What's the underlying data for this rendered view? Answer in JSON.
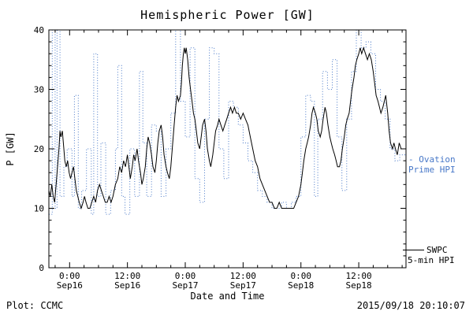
{
  "title": "Hemispheric Power [GW]",
  "ylabel": "P [GW]",
  "xlabel": "Date and Time",
  "footer_left": "Plot: CCMC",
  "footer_right": "2015/09/18 20:10:07",
  "legend": {
    "ovation_line1": "- Ovation",
    "ovation_line2": "Prime HPI",
    "swpc_line1": "SWPC",
    "swpc_line2": "5-min HPI"
  },
  "colors": {
    "ovation": "#4878c8",
    "swpc": "#000000",
    "axis": "#000000",
    "background": "#ffffff"
  },
  "chart_data": {
    "type": "line",
    "title": "Hemispheric Power [GW]",
    "xlabel": "Date and Time",
    "ylabel": "P [GW]",
    "ylim": [
      0,
      40
    ],
    "y_ticks": [
      0,
      10,
      20,
      30,
      40
    ],
    "y_minor_step": 2,
    "x_unit": "hours since 2015-09-16 00:00",
    "xlim_hours": [
      -4.3,
      69.8
    ],
    "x_minor_step": 3,
    "grid": false,
    "legend_position": "right-outside",
    "x_ticks": [
      {
        "t": 0,
        "line1": "0:00",
        "line2": "Sep16"
      },
      {
        "t": 12,
        "line1": "12:00",
        "line2": "Sep16"
      },
      {
        "t": 24,
        "line1": "0:00",
        "line2": "Sep17"
      },
      {
        "t": 36,
        "line1": "12:00",
        "line2": "Sep17"
      },
      {
        "t": 48,
        "line1": "0:00",
        "line2": "Sep18"
      },
      {
        "t": 60,
        "line1": "12:00",
        "line2": "Sep18"
      }
    ],
    "series": [
      {
        "name": "Ovation Prime HPI",
        "style": "step-dotted",
        "color": "#4878c8",
        "points": [
          [
            -4.3,
            9
          ],
          [
            -3.6,
            40
          ],
          [
            -3.0,
            10
          ],
          [
            -2.6,
            40
          ],
          [
            -2.0,
            12
          ],
          [
            -1.2,
            17
          ],
          [
            -0.5,
            20
          ],
          [
            0.5,
            12
          ],
          [
            1.0,
            29
          ],
          [
            1.8,
            10
          ],
          [
            2.5,
            13
          ],
          [
            3.5,
            20
          ],
          [
            4.5,
            9
          ],
          [
            5.0,
            36
          ],
          [
            5.8,
            12
          ],
          [
            6.5,
            21
          ],
          [
            7.5,
            9
          ],
          [
            8.5,
            13
          ],
          [
            9.5,
            20
          ],
          [
            10.0,
            34
          ],
          [
            10.8,
            12
          ],
          [
            11.5,
            9
          ],
          [
            12.5,
            20
          ],
          [
            13.5,
            12
          ],
          [
            14.5,
            33
          ],
          [
            15.2,
            21
          ],
          [
            16.0,
            12
          ],
          [
            17.0,
            24
          ],
          [
            18.0,
            23
          ],
          [
            19.0,
            12
          ],
          [
            20.0,
            20
          ],
          [
            21.0,
            26
          ],
          [
            22.0,
            40
          ],
          [
            23.0,
            28
          ],
          [
            24.0,
            22
          ],
          [
            25.0,
            37
          ],
          [
            26.0,
            15
          ],
          [
            27.0,
            11
          ],
          [
            28.0,
            25
          ],
          [
            29.0,
            37
          ],
          [
            30.0,
            36
          ],
          [
            31.0,
            20
          ],
          [
            32.0,
            15
          ],
          [
            33.0,
            28
          ],
          [
            34.0,
            27
          ],
          [
            35.0,
            24
          ],
          [
            36.0,
            21
          ],
          [
            37.0,
            18
          ],
          [
            38.0,
            16
          ],
          [
            39.0,
            13
          ],
          [
            40.0,
            12
          ],
          [
            41.0,
            11
          ],
          [
            42.0,
            10
          ],
          [
            43.0,
            10
          ],
          [
            44.0,
            11
          ],
          [
            45.0,
            10
          ],
          [
            46.0,
            11
          ],
          [
            47.0,
            12
          ],
          [
            48.0,
            22
          ],
          [
            49.0,
            29
          ],
          [
            50.0,
            28
          ],
          [
            50.8,
            12
          ],
          [
            51.5,
            25
          ],
          [
            52.5,
            33
          ],
          [
            53.5,
            30
          ],
          [
            54.5,
            35
          ],
          [
            55.5,
            22
          ],
          [
            56.5,
            13
          ],
          [
            57.5,
            25
          ],
          [
            58.5,
            33
          ],
          [
            59.5,
            40
          ],
          [
            60.5,
            37
          ],
          [
            61.5,
            38
          ],
          [
            62.5,
            36
          ],
          [
            63.5,
            30
          ],
          [
            64.5,
            28
          ],
          [
            65.5,
            25
          ],
          [
            66.5,
            20
          ],
          [
            67.5,
            18
          ],
          [
            68.5,
            19
          ]
        ]
      },
      {
        "name": "SWPC 5-min HPI",
        "style": "line-solid",
        "color": "#000000",
        "points": [
          [
            -4.3,
            13
          ],
          [
            -4.0,
            12
          ],
          [
            -3.7,
            14
          ],
          [
            -3.4,
            12
          ],
          [
            -3.1,
            11
          ],
          [
            -2.8,
            14
          ],
          [
            -2.5,
            17
          ],
          [
            -2.2,
            20
          ],
          [
            -2.0,
            23
          ],
          [
            -1.8,
            22
          ],
          [
            -1.5,
            23
          ],
          [
            -1.2,
            20
          ],
          [
            -1.0,
            18
          ],
          [
            -0.7,
            17
          ],
          [
            -0.4,
            18
          ],
          [
            -0.1,
            16
          ],
          [
            0.2,
            15
          ],
          [
            0.5,
            16
          ],
          [
            0.8,
            17
          ],
          [
            1.1,
            15
          ],
          [
            1.4,
            13
          ],
          [
            1.7,
            12
          ],
          [
            2.0,
            11
          ],
          [
            2.4,
            10
          ],
          [
            2.8,
            11
          ],
          [
            3.1,
            12
          ],
          [
            3.4,
            11
          ],
          [
            3.8,
            10
          ],
          [
            4.2,
            10
          ],
          [
            4.6,
            11
          ],
          [
            5.0,
            12
          ],
          [
            5.4,
            11
          ],
          [
            5.8,
            13
          ],
          [
            6.2,
            14
          ],
          [
            6.6,
            13
          ],
          [
            7.0,
            12
          ],
          [
            7.4,
            11
          ],
          [
            7.8,
            11
          ],
          [
            8.2,
            12
          ],
          [
            8.6,
            11
          ],
          [
            9.0,
            12
          ],
          [
            9.5,
            14
          ],
          [
            10.0,
            15
          ],
          [
            10.4,
            17
          ],
          [
            10.8,
            16
          ],
          [
            11.2,
            18
          ],
          [
            11.6,
            17
          ],
          [
            12.0,
            19
          ],
          [
            12.3,
            17
          ],
          [
            12.6,
            15
          ],
          [
            13.0,
            17
          ],
          [
            13.3,
            19
          ],
          [
            13.6,
            18
          ],
          [
            14.0,
            20
          ],
          [
            14.3,
            18
          ],
          [
            14.7,
            16
          ],
          [
            15.0,
            14
          ],
          [
            15.3,
            15
          ],
          [
            15.7,
            17
          ],
          [
            16.0,
            20
          ],
          [
            16.3,
            22
          ],
          [
            16.6,
            21
          ],
          [
            17.0,
            19
          ],
          [
            17.3,
            17
          ],
          [
            17.7,
            16
          ],
          [
            18.0,
            18
          ],
          [
            18.3,
            21
          ],
          [
            18.6,
            23
          ],
          [
            19.0,
            24
          ],
          [
            19.3,
            22
          ],
          [
            19.6,
            19
          ],
          [
            20.0,
            17
          ],
          [
            20.3,
            16
          ],
          [
            20.7,
            15
          ],
          [
            21.0,
            17
          ],
          [
            21.3,
            20
          ],
          [
            21.7,
            24
          ],
          [
            22.0,
            27
          ],
          [
            22.3,
            29
          ],
          [
            22.6,
            28
          ],
          [
            23.0,
            29
          ],
          [
            23.2,
            31
          ],
          [
            23.4,
            34
          ],
          [
            23.6,
            36
          ],
          [
            23.8,
            37
          ],
          [
            24.0,
            36
          ],
          [
            24.2,
            37
          ],
          [
            24.5,
            35
          ],
          [
            24.8,
            32
          ],
          [
            25.1,
            30
          ],
          [
            25.4,
            28
          ],
          [
            25.7,
            26
          ],
          [
            26.0,
            25
          ],
          [
            26.3,
            23
          ],
          [
            26.6,
            21
          ],
          [
            27.0,
            20
          ],
          [
            27.3,
            22
          ],
          [
            27.6,
            24
          ],
          [
            28.0,
            25
          ],
          [
            28.3,
            23
          ],
          [
            28.6,
            20
          ],
          [
            29.0,
            18
          ],
          [
            29.3,
            17
          ],
          [
            29.7,
            19
          ],
          [
            30.0,
            21
          ],
          [
            30.3,
            23
          ],
          [
            30.7,
            24
          ],
          [
            31.0,
            25
          ],
          [
            31.4,
            24
          ],
          [
            31.8,
            23
          ],
          [
            32.2,
            24
          ],
          [
            32.6,
            25
          ],
          [
            33.0,
            26
          ],
          [
            33.4,
            27
          ],
          [
            33.8,
            26
          ],
          [
            34.2,
            27
          ],
          [
            34.6,
            26
          ],
          [
            35.0,
            26
          ],
          [
            35.5,
            25
          ],
          [
            36.0,
            26
          ],
          [
            36.5,
            25
          ],
          [
            37.0,
            24
          ],
          [
            37.5,
            22
          ],
          [
            38.0,
            20
          ],
          [
            38.5,
            18
          ],
          [
            39.0,
            17
          ],
          [
            39.5,
            15
          ],
          [
            40.0,
            14
          ],
          [
            40.5,
            13
          ],
          [
            41.0,
            12
          ],
          [
            41.5,
            11
          ],
          [
            42.0,
            11
          ],
          [
            42.5,
            10
          ],
          [
            43.0,
            10
          ],
          [
            43.5,
            11
          ],
          [
            44.0,
            10
          ],
          [
            44.5,
            10
          ],
          [
            45.0,
            10
          ],
          [
            45.5,
            10
          ],
          [
            46.0,
            10
          ],
          [
            46.5,
            10
          ],
          [
            47.0,
            11
          ],
          [
            47.5,
            12
          ],
          [
            48.0,
            14
          ],
          [
            48.3,
            16
          ],
          [
            48.6,
            18
          ],
          [
            49.0,
            20
          ],
          [
            49.3,
            21
          ],
          [
            49.6,
            22
          ],
          [
            50.0,
            24
          ],
          [
            50.3,
            26
          ],
          [
            50.6,
            27
          ],
          [
            51.0,
            26
          ],
          [
            51.3,
            25
          ],
          [
            51.6,
            23
          ],
          [
            52.0,
            22
          ],
          [
            52.3,
            23
          ],
          [
            52.6,
            25
          ],
          [
            53.0,
            27
          ],
          [
            53.3,
            26
          ],
          [
            53.6,
            24
          ],
          [
            54.0,
            22
          ],
          [
            54.3,
            21
          ],
          [
            54.6,
            20
          ],
          [
            55.0,
            19
          ],
          [
            55.3,
            18
          ],
          [
            55.6,
            17
          ],
          [
            56.0,
            17
          ],
          [
            56.3,
            18
          ],
          [
            56.6,
            20
          ],
          [
            57.0,
            22
          ],
          [
            57.3,
            24
          ],
          [
            57.6,
            25
          ],
          [
            58.0,
            26
          ],
          [
            58.3,
            28
          ],
          [
            58.6,
            30
          ],
          [
            59.0,
            32
          ],
          [
            59.3,
            34
          ],
          [
            59.6,
            35
          ],
          [
            60.0,
            36
          ],
          [
            60.3,
            37
          ],
          [
            60.6,
            36
          ],
          [
            61.0,
            37
          ],
          [
            61.4,
            36
          ],
          [
            61.8,
            35
          ],
          [
            62.2,
            36
          ],
          [
            62.6,
            35
          ],
          [
            63.0,
            33
          ],
          [
            63.3,
            31
          ],
          [
            63.6,
            29
          ],
          [
            64.0,
            28
          ],
          [
            64.3,
            27
          ],
          [
            64.6,
            26
          ],
          [
            65.0,
            27
          ],
          [
            65.3,
            28
          ],
          [
            65.6,
            29
          ],
          [
            66.0,
            26
          ],
          [
            66.3,
            23
          ],
          [
            66.6,
            21
          ],
          [
            67.0,
            20
          ],
          [
            67.3,
            21
          ],
          [
            67.6,
            20
          ],
          [
            68.0,
            19
          ],
          [
            68.4,
            21
          ],
          [
            68.8,
            20
          ]
        ]
      }
    ]
  }
}
